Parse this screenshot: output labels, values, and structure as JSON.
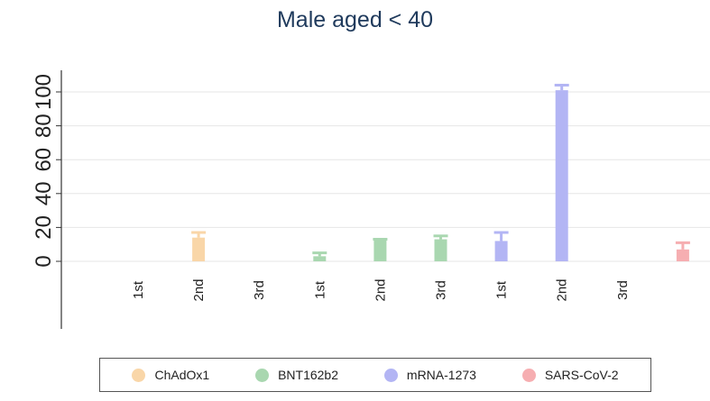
{
  "chart_data": {
    "type": "bar",
    "title": "Male aged < 40",
    "ylim": [
      0,
      110
    ],
    "yticks": [
      0,
      20,
      40,
      60,
      80,
      100
    ],
    "categories": [
      "1st",
      "2nd",
      "3rd",
      "1st",
      "2nd",
      "3rd",
      "1st",
      "2nd",
      "3rd",
      ""
    ],
    "groups": [
      "ChAdOx1",
      "ChAdOx1",
      "ChAdOx1",
      "BNT162b2",
      "BNT162b2",
      "BNT162b2",
      "mRNA-1273",
      "mRNA-1273",
      "mRNA-1273",
      "SARS-CoV-2"
    ],
    "values": [
      null,
      14,
      null,
      3,
      13,
      13,
      12,
      101,
      null,
      7
    ],
    "upper_errors": [
      null,
      17,
      null,
      5,
      13,
      15,
      17,
      104,
      null,
      11
    ],
    "legend": [
      "ChAdOx1",
      "BNT162b2",
      "mRNA-1273",
      "SARS-CoV-2"
    ],
    "legend_position": "bottom",
    "grid": "horizontal",
    "colors": {
      "ChAdOx1": "#f9d6a8",
      "BNT162b2": "#a9d7b0",
      "mRNA-1273": "#b3b5f4",
      "SARS-CoV-2": "#f6aeb1"
    }
  }
}
